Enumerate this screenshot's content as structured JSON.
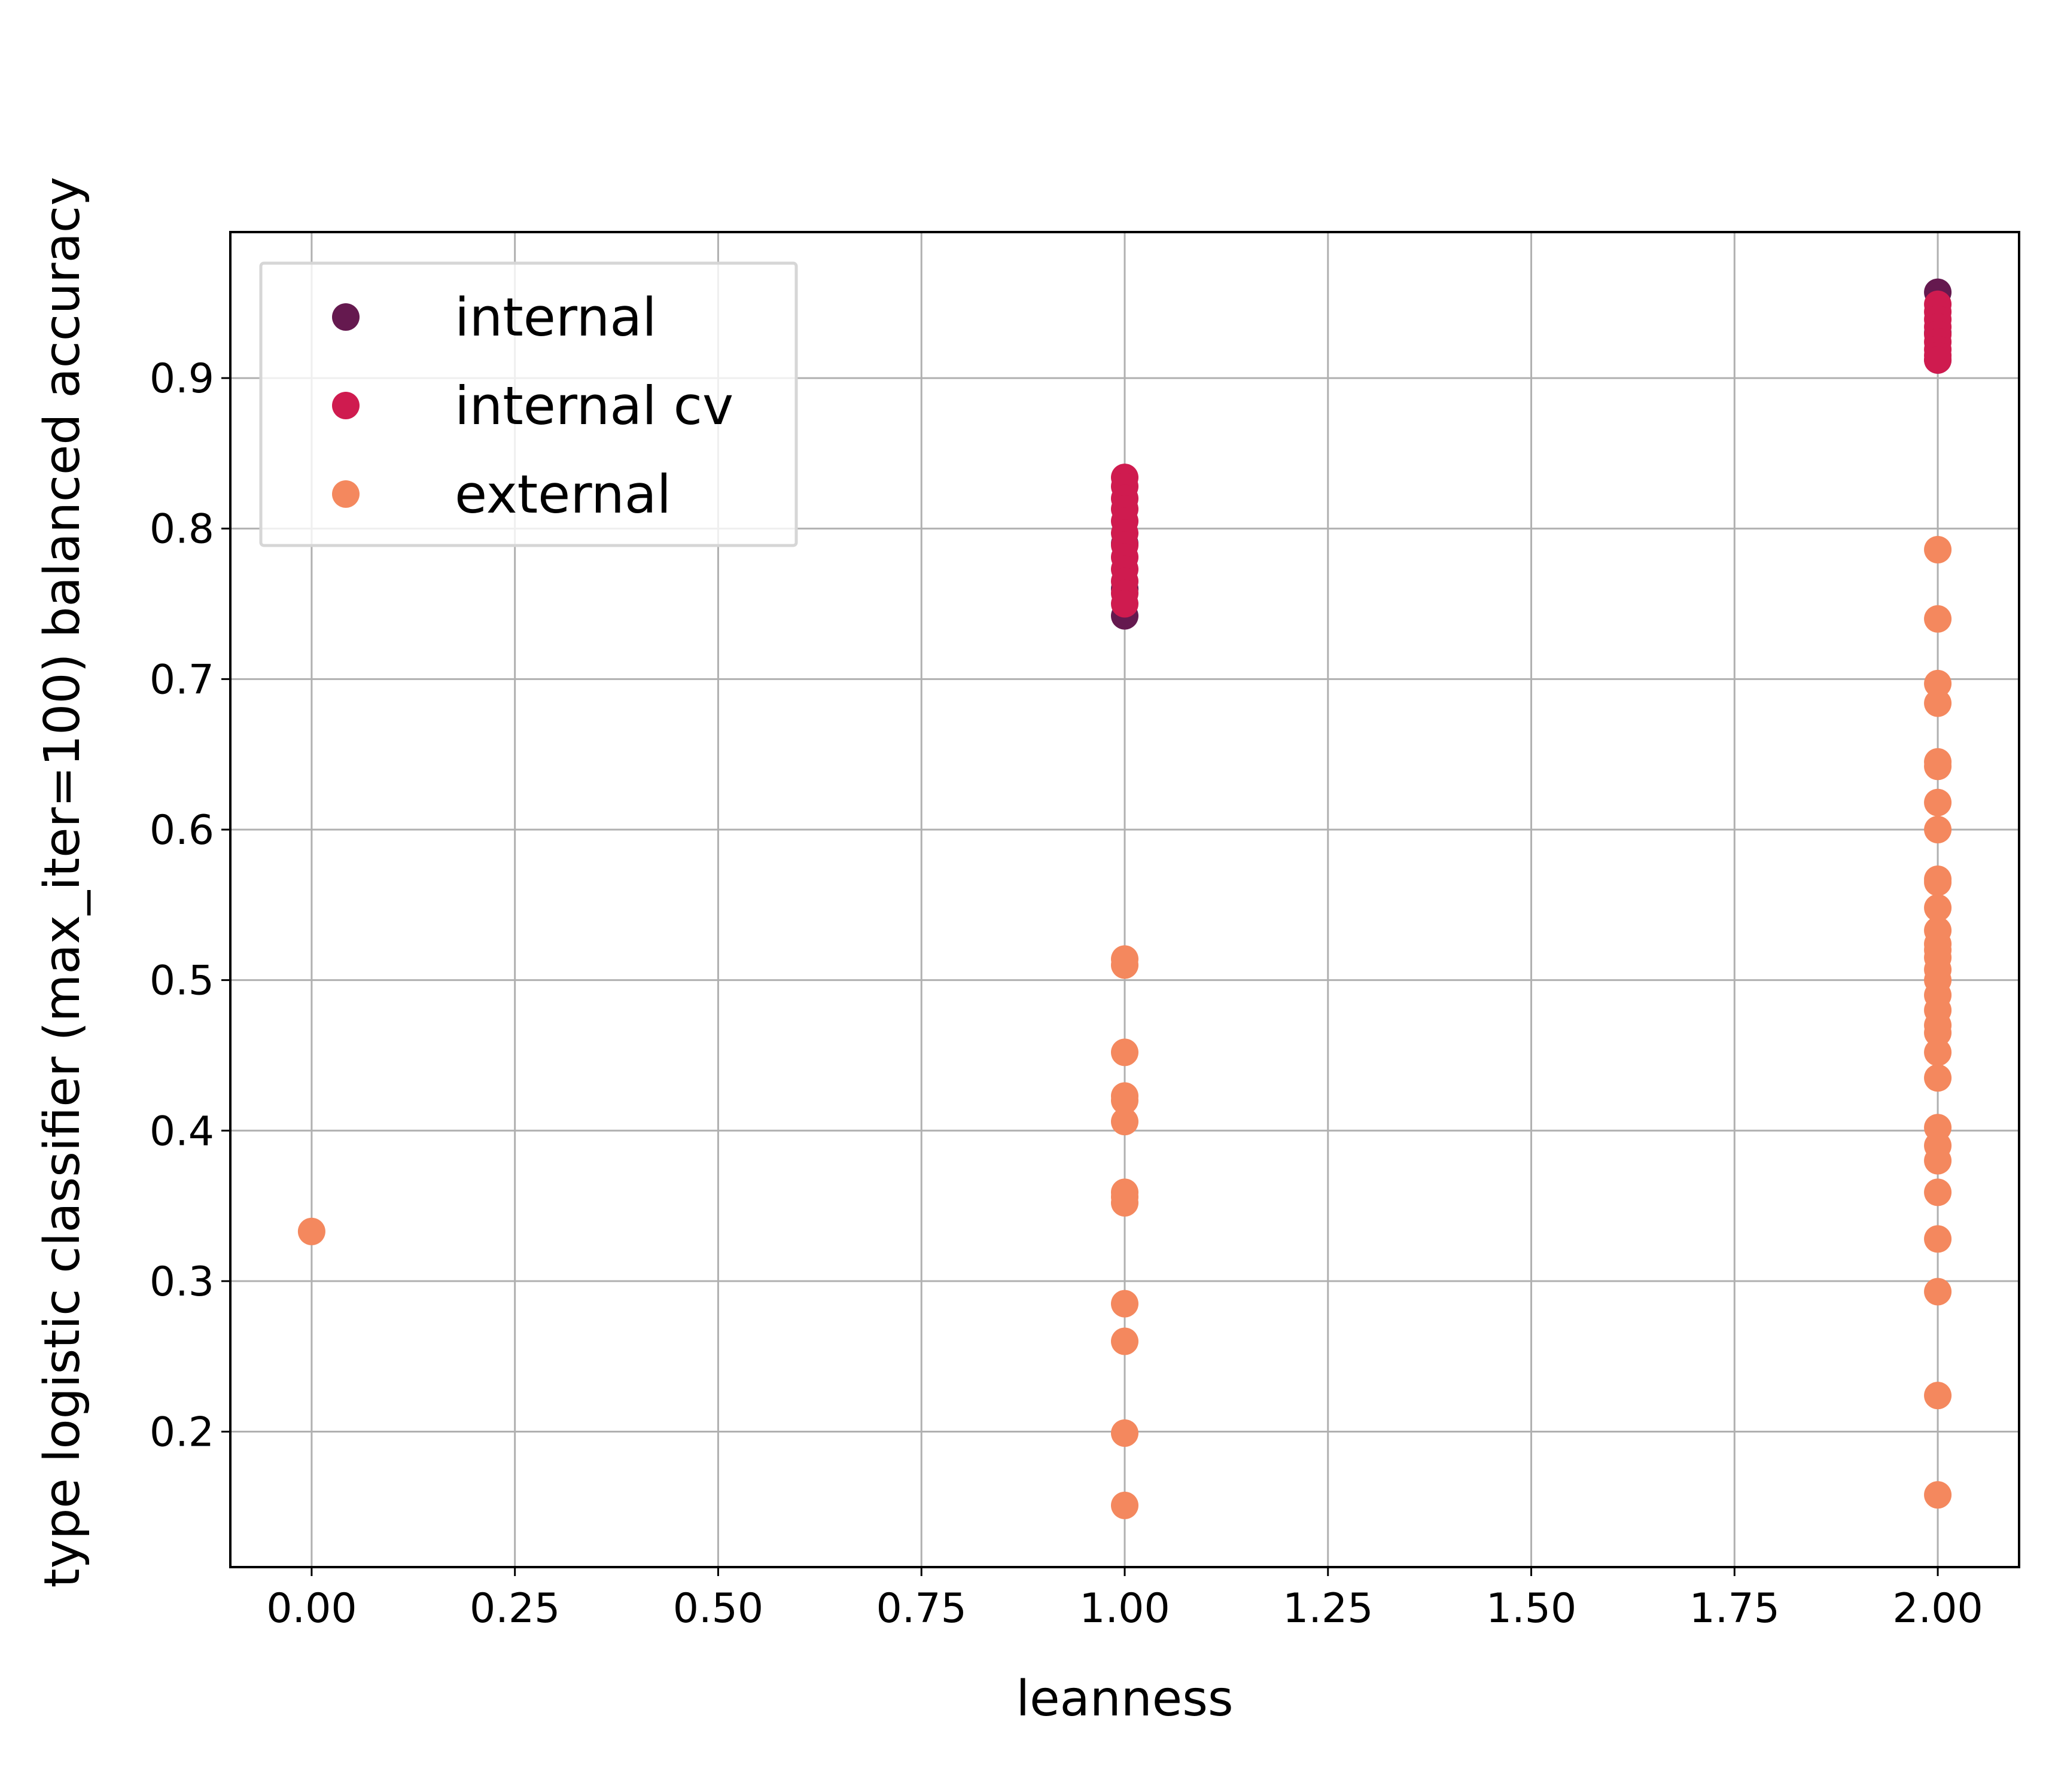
{
  "chart_data": {
    "type": "scatter",
    "xlabel": "leanness",
    "ylabel": "type logistic classifier (max_iter=100) balanced accuracy",
    "xlim": [
      -0.1,
      2.1
    ],
    "ylim": [
      0.11,
      0.997
    ],
    "xticks": [
      0.0,
      0.25,
      0.5,
      0.75,
      1.0,
      1.25,
      1.5,
      1.75,
      2.0
    ],
    "xtick_labels": [
      "0.00",
      "0.25",
      "0.50",
      "0.75",
      "1.00",
      "1.25",
      "1.50",
      "1.75",
      "2.00"
    ],
    "yticks": [
      0.2,
      0.3,
      0.4,
      0.5,
      0.6,
      0.7,
      0.8,
      0.9
    ],
    "ytick_labels": [
      "0.2",
      "0.3",
      "0.4",
      "0.5",
      "0.6",
      "0.7",
      "0.8",
      "0.9"
    ],
    "grid": true,
    "legend_position": "upper left",
    "series": [
      {
        "name": "internal",
        "color": "#65194f",
        "x": [
          1,
          1,
          1,
          2,
          2,
          2
        ],
        "y": [
          0.742,
          0.76,
          0.79,
          0.957,
          0.93,
          0.912
        ]
      },
      {
        "name": "internal cv",
        "color": "#cf1b4f",
        "x": [
          1,
          1,
          1,
          1,
          1,
          1,
          1,
          1,
          1,
          1,
          1,
          1,
          2,
          2,
          2,
          2,
          2,
          2,
          2,
          2,
          2
        ],
        "y": [
          0.834,
          0.828,
          0.82,
          0.813,
          0.805,
          0.797,
          0.789,
          0.781,
          0.773,
          0.765,
          0.757,
          0.75,
          0.949,
          0.944,
          0.939,
          0.934,
          0.929,
          0.924,
          0.919,
          0.915,
          0.912
        ]
      },
      {
        "name": "external",
        "color": "#f4885e",
        "x": [
          0,
          1,
          1,
          1,
          1,
          1,
          1,
          1,
          1,
          1,
          1,
          1,
          1,
          1,
          2,
          2,
          2,
          2,
          2,
          2,
          2,
          2,
          2,
          2,
          2,
          2,
          2,
          2,
          2,
          2,
          2,
          2,
          2,
          2,
          2,
          2,
          2,
          2,
          2,
          2,
          2,
          2,
          2,
          2,
          2
        ],
        "y": [
          0.333,
          0.514,
          0.51,
          0.452,
          0.423,
          0.42,
          0.406,
          0.359,
          0.356,
          0.352,
          0.285,
          0.26,
          0.199,
          0.151,
          0.786,
          0.74,
          0.697,
          0.684,
          0.645,
          0.642,
          0.618,
          0.6,
          0.567,
          0.565,
          0.548,
          0.533,
          0.524,
          0.52,
          0.507,
          0.49,
          0.48,
          0.47,
          0.452,
          0.435,
          0.402,
          0.39,
          0.38,
          0.359,
          0.328,
          0.293,
          0.224,
          0.158,
          0.5,
          0.515,
          0.465
        ]
      }
    ]
  }
}
